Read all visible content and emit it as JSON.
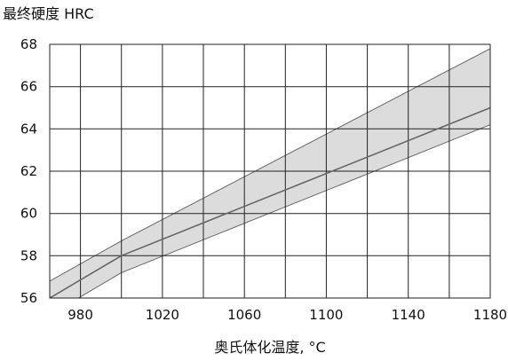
{
  "chart_data": {
    "type": "line",
    "ylabel": "最终硬度 HRC",
    "xlabel": "奥氏体化温度, °C",
    "xlim": [
      965,
      1180
    ],
    "ylim": [
      56,
      68
    ],
    "x_ticks": [
      980,
      1020,
      1060,
      1100,
      1140,
      1180
    ],
    "y_ticks": [
      56,
      58,
      60,
      62,
      64,
      66,
      68
    ],
    "x_gridlines": [
      980,
      1000,
      1020,
      1040,
      1060,
      1080,
      1100,
      1120,
      1140,
      1160,
      1180
    ],
    "y_gridlines": [
      58,
      60,
      62,
      64,
      66,
      68
    ],
    "grid": true,
    "series": [
      {
        "values": [
          [
            965,
            56.0
          ],
          [
            1000,
            58.0
          ],
          [
            1180,
            65.0
          ]
        ]
      }
    ],
    "band": {
      "upper": [
        [
          965,
          56.8
        ],
        [
          1000,
          58.7
        ],
        [
          1180,
          67.8
        ]
      ],
      "lower": [
        [
          965,
          55.2
        ],
        [
          1000,
          57.2
        ],
        [
          1180,
          64.2
        ]
      ]
    },
    "colors": {
      "line": "#666666",
      "band_fill": "#dcdcdc",
      "band_edge": "#666666",
      "grid": "#222222",
      "text": "#111111"
    }
  }
}
